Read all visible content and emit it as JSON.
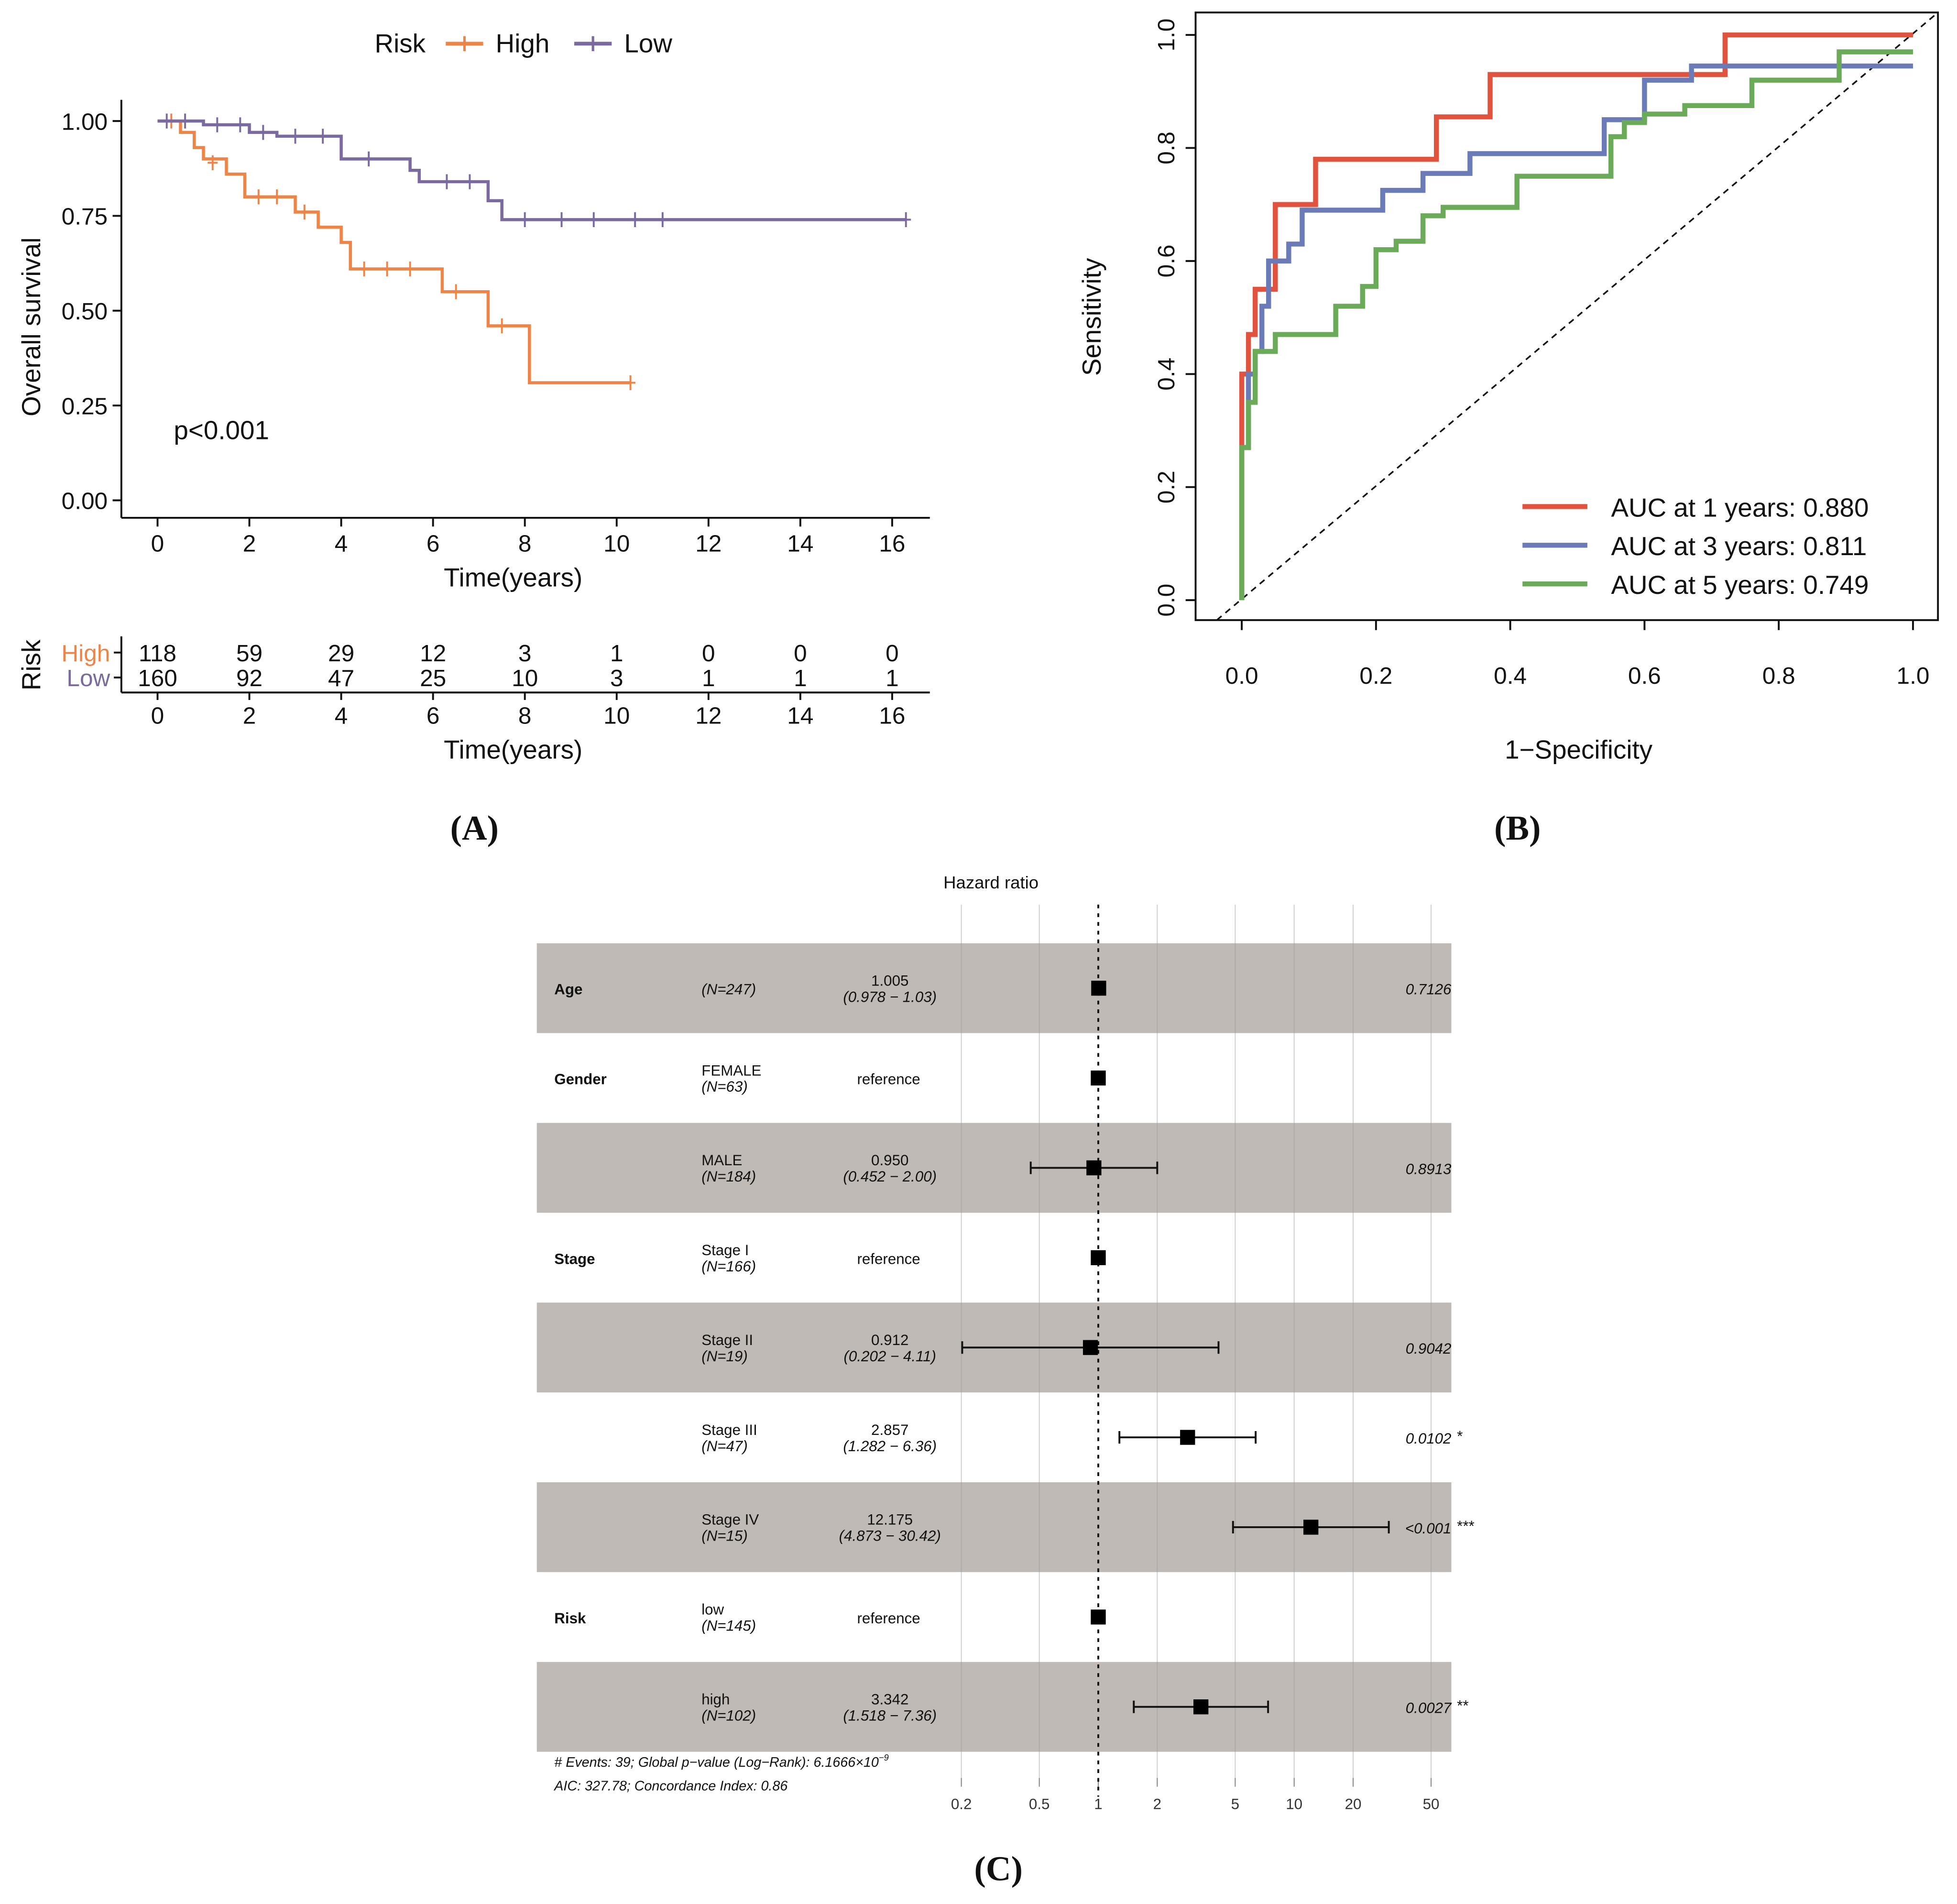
{
  "colors": {
    "high": "#EE8548",
    "low": "#7B6A9F",
    "roc1": "#E0533E",
    "roc3": "#6A7BB8",
    "roc5": "#6BAA58",
    "band": "#BFBAB5"
  },
  "chart_data": [
    {
      "type": "line",
      "panel_label": "(A)",
      "legend_title": "Risk",
      "legend_placement": "top",
      "xlabel": "Time(years)",
      "ylabel": "Overall survival",
      "xlim": [
        0,
        16.5
      ],
      "ylim": [
        0,
        1
      ],
      "xticks": [
        "0",
        "2",
        "4",
        "6",
        "8",
        "10",
        "12",
        "14",
        "16"
      ],
      "yticks": [
        "0.00",
        "0.25",
        "0.50",
        "0.75",
        "1.00"
      ],
      "annotation": "p<0.001",
      "series": [
        {
          "name": "High",
          "steps": [
            [
              0,
              1
            ],
            [
              0.5,
              0.97
            ],
            [
              0.8,
              0.93
            ],
            [
              1,
              0.9
            ],
            [
              1.5,
              0.86
            ],
            [
              1.9,
              0.8
            ],
            [
              3,
              0.76
            ],
            [
              3.5,
              0.72
            ],
            [
              4,
              0.68
            ],
            [
              4.2,
              0.61
            ],
            [
              6.2,
              0.55
            ],
            [
              7.2,
              0.46
            ],
            [
              8.1,
              0.31
            ],
            [
              10.3,
              0.31
            ]
          ],
          "censors": [
            [
              0.3,
              1
            ],
            [
              1.2,
              0.89
            ],
            [
              2.2,
              0.8
            ],
            [
              2.6,
              0.8
            ],
            [
              3.2,
              0.76
            ],
            [
              4.5,
              0.61
            ],
            [
              5,
              0.61
            ],
            [
              5.5,
              0.61
            ],
            [
              6.5,
              0.55
            ],
            [
              7.5,
              0.46
            ],
            [
              10.3,
              0.31
            ]
          ]
        },
        {
          "name": "Low",
          "steps": [
            [
              0,
              1
            ],
            [
              1,
              0.99
            ],
            [
              2,
              0.97
            ],
            [
              2.6,
              0.96
            ],
            [
              4,
              0.9
            ],
            [
              5.5,
              0.87
            ],
            [
              5.7,
              0.84
            ],
            [
              7.2,
              0.79
            ],
            [
              7.5,
              0.74
            ],
            [
              16.3,
              0.74
            ]
          ],
          "censors": [
            [
              0.2,
              1
            ],
            [
              0.6,
              1
            ],
            [
              1.3,
              0.99
            ],
            [
              1.8,
              0.99
            ],
            [
              2.3,
              0.97
            ],
            [
              3,
              0.96
            ],
            [
              3.6,
              0.96
            ],
            [
              4.6,
              0.9
            ],
            [
              6.3,
              0.84
            ],
            [
              6.8,
              0.84
            ],
            [
              8,
              0.74
            ],
            [
              8.8,
              0.74
            ],
            [
              9.5,
              0.74
            ],
            [
              10.4,
              0.74
            ],
            [
              11,
              0.74
            ],
            [
              16.3,
              0.74
            ]
          ]
        }
      ],
      "risk_table": {
        "title": "Risk",
        "xlabel": "Time(years)",
        "times": [
          "0",
          "2",
          "4",
          "6",
          "8",
          "10",
          "12",
          "14",
          "16"
        ],
        "rows": [
          {
            "name": "High",
            "counts": [
              "118",
              "59",
              "29",
              "12",
              "3",
              "1",
              "0",
              "0",
              "0"
            ]
          },
          {
            "name": "Low",
            "counts": [
              "160",
              "92",
              "47",
              "25",
              "10",
              "3",
              "1",
              "1",
              "1"
            ]
          }
        ]
      }
    },
    {
      "type": "line",
      "panel_label": "(B)",
      "xlabel": "1−Specificity",
      "ylabel": "Sensitivity",
      "xlim": [
        0,
        1
      ],
      "ylim": [
        0,
        1
      ],
      "xticks": [
        "0.0",
        "0.2",
        "0.4",
        "0.6",
        "0.8",
        "1.0"
      ],
      "yticks": [
        "0.0",
        "0.2",
        "0.4",
        "0.6",
        "0.8",
        "1.0"
      ],
      "legend_placement": "bottom-right",
      "series": [
        {
          "name": "AUC at 1 years: 0.880",
          "points": [
            [
              0,
              0
            ],
            [
              0,
              0.4
            ],
            [
              0.01,
              0.47
            ],
            [
              0.02,
              0.55
            ],
            [
              0.05,
              0.7
            ],
            [
              0.11,
              0.78
            ],
            [
              0.29,
              0.855
            ],
            [
              0.37,
              0.93
            ],
            [
              0.72,
              1
            ],
            [
              1,
              1
            ]
          ]
        },
        {
          "name": "AUC at 3 years: 0.811",
          "points": [
            [
              0,
              0
            ],
            [
              0,
              0.27
            ],
            [
              0.01,
              0.4
            ],
            [
              0.02,
              0.44
            ],
            [
              0.03,
              0.52
            ],
            [
              0.04,
              0.6
            ],
            [
              0.07,
              0.63
            ],
            [
              0.09,
              0.69
            ],
            [
              0.21,
              0.725
            ],
            [
              0.27,
              0.755
            ],
            [
              0.34,
              0.79
            ],
            [
              0.54,
              0.85
            ],
            [
              0.6,
              0.92
            ],
            [
              0.67,
              0.945
            ],
            [
              1,
              0.945
            ]
          ]
        },
        {
          "name": "AUC at 5 years: 0.749",
          "points": [
            [
              0,
              0
            ],
            [
              0,
              0.27
            ],
            [
              0.01,
              0.35
            ],
            [
              0.02,
              0.44
            ],
            [
              0.05,
              0.47
            ],
            [
              0.14,
              0.52
            ],
            [
              0.18,
              0.555
            ],
            [
              0.2,
              0.62
            ],
            [
              0.23,
              0.635
            ],
            [
              0.27,
              0.68
            ],
            [
              0.3,
              0.695
            ],
            [
              0.41,
              0.75
            ],
            [
              0.55,
              0.82
            ],
            [
              0.57,
              0.845
            ],
            [
              0.6,
              0.86
            ],
            [
              0.66,
              0.875
            ],
            [
              0.76,
              0.92
            ],
            [
              0.89,
              0.97
            ],
            [
              1,
              0.97
            ]
          ]
        }
      ]
    },
    {
      "type": "forest",
      "panel_label": "(C)",
      "title": "Hazard ratio",
      "xticks": [
        0.2,
        0.5,
        1,
        2,
        5,
        10,
        20,
        50
      ],
      "rows": [
        {
          "var": "Age",
          "level": "",
          "n": "(N=247)",
          "hr_text": "1.005",
          "ci_text": "(0.978 −  1.03)",
          "hr": 1.005,
          "lo": 0.978,
          "hi": 1.03,
          "p": "0.7126",
          "stars": ""
        },
        {
          "var": "Gender",
          "level": "FEMALE",
          "n": "(N=63)",
          "hr_text": "reference",
          "ci_text": "",
          "hr": 1,
          "lo": null,
          "hi": null,
          "p": "",
          "stars": ""
        },
        {
          "var": "",
          "level": "MALE",
          "n": "(N=184)",
          "hr_text": "0.950",
          "ci_text": "(0.452 −  2.00)",
          "hr": 0.95,
          "lo": 0.452,
          "hi": 2.0,
          "p": "0.8913",
          "stars": ""
        },
        {
          "var": "Stage",
          "level": "Stage I",
          "n": "(N=166)",
          "hr_text": "reference",
          "ci_text": "",
          "hr": 1,
          "lo": null,
          "hi": null,
          "p": "",
          "stars": ""
        },
        {
          "var": "",
          "level": "Stage II",
          "n": "(N=19)",
          "hr_text": "0.912",
          "ci_text": "(0.202 −  4.11)",
          "hr": 0.912,
          "lo": 0.202,
          "hi": 4.11,
          "p": "0.9042",
          "stars": ""
        },
        {
          "var": "",
          "level": "Stage III",
          "n": "(N=47)",
          "hr_text": "2.857",
          "ci_text": "(1.282 −  6.36)",
          "hr": 2.857,
          "lo": 1.282,
          "hi": 6.36,
          "p": "0.0102",
          "stars": "*"
        },
        {
          "var": "",
          "level": "Stage IV",
          "n": "(N=15)",
          "hr_text": "12.175",
          "ci_text": "(4.873 − 30.42)",
          "hr": 12.175,
          "lo": 4.873,
          "hi": 30.42,
          "p": "<0.001",
          "stars": "***"
        },
        {
          "var": "Risk",
          "level": "low",
          "n": "(N=145)",
          "hr_text": "reference",
          "ci_text": "",
          "hr": 1,
          "lo": null,
          "hi": null,
          "p": "",
          "stars": ""
        },
        {
          "var": "",
          "level": "high",
          "n": "(N=102)",
          "hr_text": "3.342",
          "ci_text": "(1.518 −  7.36)",
          "hr": 3.342,
          "lo": 1.518,
          "hi": 7.36,
          "p": "0.0027",
          "stars": "**"
        }
      ],
      "footnote1": "# Events: 39; Global p−value (Log−Rank): 6.1666×10",
      "footnote1_exp": "−9",
      "footnote2": "AIC: 327.78; Concordance Index: 0.86"
    }
  ]
}
